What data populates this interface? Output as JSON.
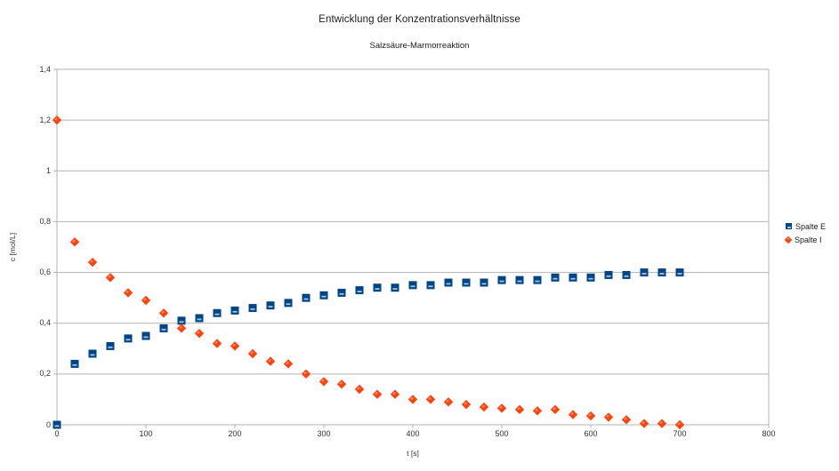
{
  "title": "Entwicklung der Konzentrationsverhältnisse",
  "subtitle": "Salzsäure-Marmorreaktion",
  "axes": {
    "x": {
      "label": "t [s]",
      "min": 0,
      "max": 800,
      "tick_values": [
        0,
        100,
        200,
        300,
        400,
        500,
        600,
        700,
        800
      ],
      "tick_labels": [
        "0",
        "100",
        "200",
        "300",
        "400",
        "500",
        "600",
        "700",
        "800"
      ]
    },
    "y": {
      "label": "c [mol/L]",
      "min": 0,
      "max": 1.4,
      "tick_values": [
        0,
        0.2,
        0.4,
        0.6,
        0.8,
        1,
        1.2,
        1.4
      ],
      "tick_labels": [
        "0",
        "0,2",
        "0,4",
        "0,6",
        "0,8",
        "1",
        "1,2",
        "1,4"
      ]
    }
  },
  "legend": {
    "position": "right",
    "items": [
      {
        "label": "Spalte E",
        "marker": "square",
        "color": "#004586"
      },
      {
        "label": "Spalte I",
        "marker": "diamond",
        "color": "#FF420E"
      }
    ]
  },
  "colors": {
    "series1": "#004586",
    "series1_highlight": "#9dc3e6",
    "series2": "#FF420E",
    "series2_highlight": "#ff9770",
    "grid": "#b3b3b3",
    "axis": "#b3b3b3",
    "text": "#333333",
    "background": "#ffffff"
  },
  "chart_data": {
    "type": "scatter",
    "title": "Entwicklung der Konzentrationsverhältnisse",
    "subtitle": "Salzsäure-Marmorreaktion",
    "xlabel": "t [s]",
    "ylabel": "c [mol/L]",
    "xlim": [
      0,
      800
    ],
    "ylim": [
      0,
      1.4
    ],
    "grid": "horizontal-only",
    "legend_position": "right",
    "x": [
      0,
      20,
      40,
      60,
      80,
      100,
      120,
      140,
      160,
      180,
      200,
      220,
      240,
      260,
      280,
      300,
      320,
      340,
      360,
      380,
      400,
      420,
      440,
      460,
      480,
      500,
      520,
      540,
      560,
      580,
      600,
      620,
      640,
      660,
      680,
      700
    ],
    "series": [
      {
        "name": "Spalte E",
        "marker": "square",
        "color": "#004586",
        "values": [
          0.0,
          0.24,
          0.28,
          0.31,
          0.34,
          0.35,
          0.38,
          0.41,
          0.42,
          0.44,
          0.45,
          0.46,
          0.47,
          0.48,
          0.5,
          0.51,
          0.52,
          0.53,
          0.54,
          0.54,
          0.55,
          0.55,
          0.56,
          0.56,
          0.56,
          0.57,
          0.57,
          0.57,
          0.58,
          0.58,
          0.58,
          0.59,
          0.59,
          0.6,
          0.6,
          0.6
        ]
      },
      {
        "name": "Spalte I",
        "marker": "diamond",
        "color": "#FF420E",
        "values": [
          1.2,
          0.72,
          0.64,
          0.58,
          0.52,
          0.49,
          0.44,
          0.38,
          0.36,
          0.32,
          0.31,
          0.28,
          0.25,
          0.24,
          0.2,
          0.17,
          0.16,
          0.14,
          0.12,
          0.12,
          0.1,
          0.1,
          0.09,
          0.08,
          0.07,
          0.065,
          0.06,
          0.055,
          0.06,
          0.04,
          0.035,
          0.03,
          0.02,
          0.005,
          0.005,
          0.0
        ]
      }
    ]
  }
}
